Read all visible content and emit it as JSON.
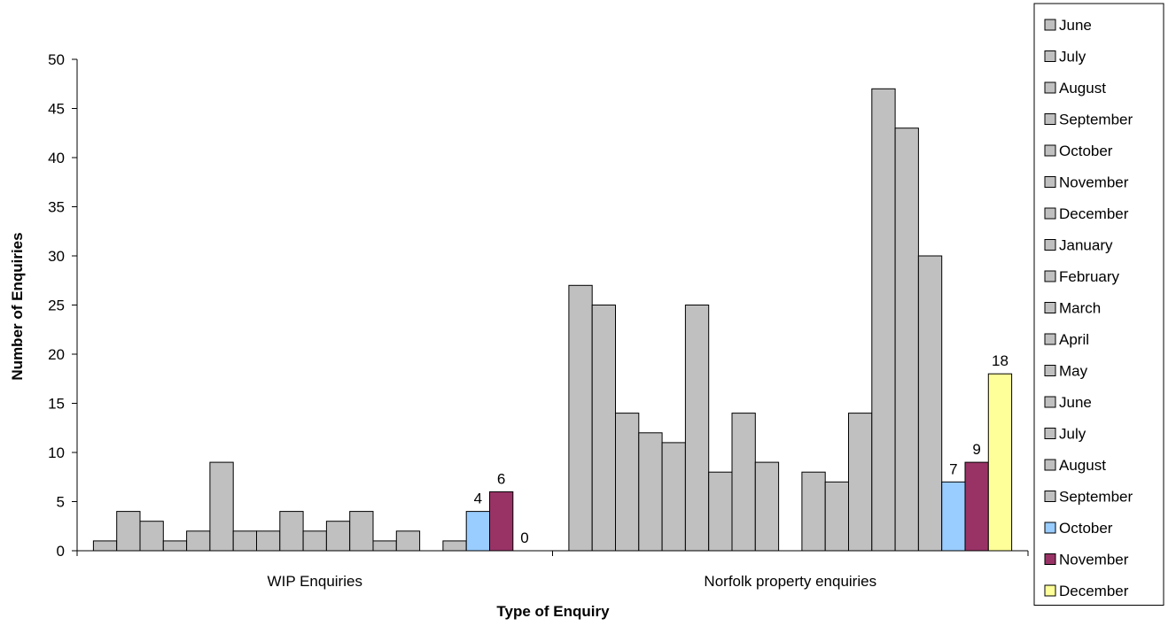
{
  "chart_data": {
    "type": "bar",
    "title": "",
    "xlabel": "Type of Enquiry",
    "ylabel": "Number of Enquiries",
    "ylim": [
      0,
      50
    ],
    "yticks": [
      0,
      5,
      10,
      15,
      20,
      25,
      30,
      35,
      40,
      45,
      50
    ],
    "grid": false,
    "legend_position": "right",
    "categories": [
      "WIP Enquiries",
      "Norfolk property enquiries"
    ],
    "series": [
      {
        "name": "June",
        "color": "#c0c0c0",
        "values": [
          1,
          27
        ]
      },
      {
        "name": "July",
        "color": "#c0c0c0",
        "values": [
          4,
          25
        ]
      },
      {
        "name": "August",
        "color": "#c0c0c0",
        "values": [
          3,
          14
        ]
      },
      {
        "name": "September",
        "color": "#c0c0c0",
        "values": [
          1,
          12
        ]
      },
      {
        "name": "October",
        "color": "#c0c0c0",
        "values": [
          2,
          11
        ]
      },
      {
        "name": "November",
        "color": "#c0c0c0",
        "values": [
          9,
          25
        ]
      },
      {
        "name": "December",
        "color": "#c0c0c0",
        "values": [
          2,
          8
        ]
      },
      {
        "name": "January",
        "color": "#c0c0c0",
        "values": [
          2,
          14
        ]
      },
      {
        "name": "February",
        "color": "#c0c0c0",
        "values": [
          4,
          9
        ]
      },
      {
        "name": "March",
        "color": "#c0c0c0",
        "values": [
          2,
          null
        ]
      },
      {
        "name": "April",
        "color": "#c0c0c0",
        "values": [
          3,
          8
        ]
      },
      {
        "name": "May",
        "color": "#c0c0c0",
        "values": [
          4,
          7
        ]
      },
      {
        "name": "June",
        "color": "#c0c0c0",
        "values": [
          1,
          14
        ]
      },
      {
        "name": "July",
        "color": "#c0c0c0",
        "values": [
          2,
          47
        ]
      },
      {
        "name": "August",
        "color": "#c0c0c0",
        "values": [
          null,
          43
        ]
      },
      {
        "name": "September",
        "color": "#c0c0c0",
        "values": [
          1,
          30
        ]
      },
      {
        "name": "October",
        "color": "#99ccff",
        "values": [
          4,
          7
        ],
        "data_labels": [
          "4",
          "7"
        ]
      },
      {
        "name": "November",
        "color": "#993366",
        "values": [
          6,
          9
        ],
        "data_labels": [
          "6",
          "9"
        ]
      },
      {
        "name": "December",
        "color": "#ffff99",
        "values": [
          0,
          18
        ],
        "data_labels": [
          "0",
          "18"
        ]
      }
    ]
  }
}
